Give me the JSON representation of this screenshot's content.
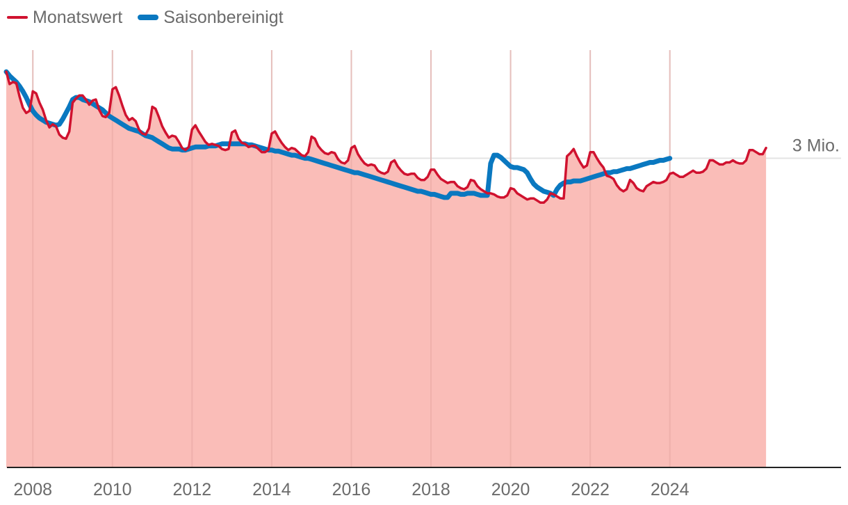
{
  "legend": {
    "items": [
      {
        "label": "Monatswert",
        "color": "#d0122f"
      },
      {
        "label": "Saisonbereinigt",
        "color": "#0a78c0"
      }
    ]
  },
  "chart_data": {
    "type": "line",
    "title": "",
    "xlabel": "",
    "ylabel": "",
    "x_ticks": [
      "2008",
      "2010",
      "2012",
      "2014",
      "2016",
      "2018",
      "2020",
      "2022",
      "2024"
    ],
    "y_reference": {
      "value": 3.0,
      "label": "3 Mio."
    },
    "ylim": [
      0,
      4.05
    ],
    "xlim": [
      2007.35,
      2028.3
    ],
    "grid": true,
    "legend_position": "top-left",
    "colors": {
      "monthly": "#d0122f",
      "seasonal": "#0a78c0",
      "area": "#fabdb8",
      "grid": "#e3e3e3",
      "axis": "#222222"
    },
    "series": [
      {
        "name": "Monatswert",
        "start": [
          2007,
          5
        ],
        "values": [
          3.84,
          3.72,
          3.74,
          3.73,
          3.6,
          3.49,
          3.44,
          3.46,
          3.65,
          3.63,
          3.54,
          3.47,
          3.37,
          3.3,
          3.33,
          3.31,
          3.23,
          3.2,
          3.19,
          3.26,
          3.54,
          3.58,
          3.61,
          3.61,
          3.57,
          3.52,
          3.56,
          3.57,
          3.47,
          3.41,
          3.4,
          3.44,
          3.67,
          3.69,
          3.61,
          3.51,
          3.42,
          3.37,
          3.39,
          3.36,
          3.28,
          3.24,
          3.23,
          3.29,
          3.5,
          3.48,
          3.4,
          3.31,
          3.25,
          3.2,
          3.22,
          3.21,
          3.16,
          3.1,
          3.08,
          3.11,
          3.28,
          3.32,
          3.26,
          3.21,
          3.16,
          3.13,
          3.14,
          3.13,
          3.12,
          3.09,
          3.08,
          3.09,
          3.25,
          3.27,
          3.19,
          3.15,
          3.14,
          3.11,
          3.12,
          3.12,
          3.09,
          3.06,
          3.06,
          3.08,
          3.24,
          3.26,
          3.2,
          3.15,
          3.11,
          3.08,
          3.1,
          3.09,
          3.06,
          3.03,
          3.02,
          3.06,
          3.21,
          3.19,
          3.12,
          3.08,
          3.05,
          3.04,
          3.06,
          3.05,
          2.99,
          2.96,
          2.95,
          2.98,
          3.1,
          3.12,
          3.04,
          2.99,
          2.95,
          2.93,
          2.94,
          2.93,
          2.88,
          2.86,
          2.85,
          2.87,
          2.96,
          2.98,
          2.92,
          2.88,
          2.85,
          2.84,
          2.85,
          2.85,
          2.81,
          2.79,
          2.79,
          2.82,
          2.89,
          2.89,
          2.84,
          2.8,
          2.78,
          2.76,
          2.77,
          2.77,
          2.73,
          2.71,
          2.7,
          2.72,
          2.79,
          2.78,
          2.73,
          2.7,
          2.68,
          2.66,
          2.66,
          2.65,
          2.63,
          2.62,
          2.62,
          2.64,
          2.71,
          2.7,
          2.66,
          2.64,
          2.62,
          2.6,
          2.61,
          2.61,
          2.59,
          2.57,
          2.57,
          2.6,
          2.66,
          2.65,
          2.63,
          2.61,
          2.61,
          3.02,
          3.05,
          3.09,
          3.02,
          2.96,
          2.91,
          2.93,
          3.06,
          3.06,
          3.0,
          2.95,
          2.91,
          2.83,
          2.82,
          2.8,
          2.74,
          2.7,
          2.68,
          2.7,
          2.79,
          2.76,
          2.71,
          2.69,
          2.68,
          2.73,
          2.75,
          2.77,
          2.76,
          2.76,
          2.77,
          2.79,
          2.85,
          2.86,
          2.84,
          2.82,
          2.82,
          2.84,
          2.86,
          2.88,
          2.86,
          2.86,
          2.87,
          2.9,
          2.98,
          2.98,
          2.96,
          2.94,
          2.94,
          2.96,
          2.96,
          2.98,
          2.96,
          2.95,
          2.95,
          2.98,
          3.08,
          3.08,
          3.06,
          3.04,
          3.04,
          3.1
        ]
      },
      {
        "name": "Saisonbereinigt",
        "start": [
          2007,
          5
        ],
        "values": [
          3.84,
          3.8,
          3.77,
          3.74,
          3.7,
          3.65,
          3.59,
          3.52,
          3.46,
          3.42,
          3.39,
          3.37,
          3.35,
          3.34,
          3.33,
          3.32,
          3.33,
          3.38,
          3.44,
          3.5,
          3.57,
          3.59,
          3.59,
          3.57,
          3.56,
          3.55,
          3.53,
          3.51,
          3.49,
          3.47,
          3.44,
          3.41,
          3.39,
          3.37,
          3.35,
          3.33,
          3.31,
          3.29,
          3.28,
          3.27,
          3.26,
          3.24,
          3.22,
          3.21,
          3.2,
          3.18,
          3.16,
          3.14,
          3.12,
          3.1,
          3.09,
          3.09,
          3.09,
          3.08,
          3.08,
          3.09,
          3.1,
          3.11,
          3.11,
          3.11,
          3.11,
          3.12,
          3.12,
          3.12,
          3.13,
          3.14,
          3.14,
          3.14,
          3.14,
          3.14,
          3.14,
          3.14,
          3.14,
          3.13,
          3.13,
          3.12,
          3.11,
          3.1,
          3.09,
          3.08,
          3.08,
          3.07,
          3.07,
          3.06,
          3.05,
          3.04,
          3.03,
          3.03,
          3.02,
          3.01,
          3.0,
          3.0,
          2.99,
          2.98,
          2.97,
          2.96,
          2.95,
          2.94,
          2.93,
          2.92,
          2.91,
          2.9,
          2.89,
          2.88,
          2.87,
          2.86,
          2.86,
          2.85,
          2.84,
          2.83,
          2.82,
          2.81,
          2.8,
          2.79,
          2.78,
          2.77,
          2.76,
          2.75,
          2.74,
          2.73,
          2.72,
          2.71,
          2.7,
          2.69,
          2.68,
          2.68,
          2.67,
          2.66,
          2.65,
          2.65,
          2.64,
          2.63,
          2.62,
          2.62,
          2.66,
          2.66,
          2.66,
          2.65,
          2.65,
          2.66,
          2.66,
          2.66,
          2.65,
          2.64,
          2.64,
          2.64,
          2.95,
          3.03,
          3.03,
          3.01,
          2.98,
          2.95,
          2.92,
          2.91,
          2.91,
          2.9,
          2.89,
          2.86,
          2.8,
          2.75,
          2.72,
          2.7,
          2.68,
          2.67,
          2.66,
          2.64,
          2.7,
          2.74,
          2.76,
          2.77,
          2.77,
          2.78,
          2.78,
          2.78,
          2.79,
          2.8,
          2.81,
          2.82,
          2.83,
          2.84,
          2.85,
          2.86,
          2.86,
          2.87,
          2.87,
          2.88,
          2.89,
          2.9,
          2.9,
          2.91,
          2.92,
          2.93,
          2.94,
          2.95,
          2.96,
          2.96,
          2.97,
          2.98,
          2.98,
          2.99,
          3.0
        ]
      }
    ]
  }
}
